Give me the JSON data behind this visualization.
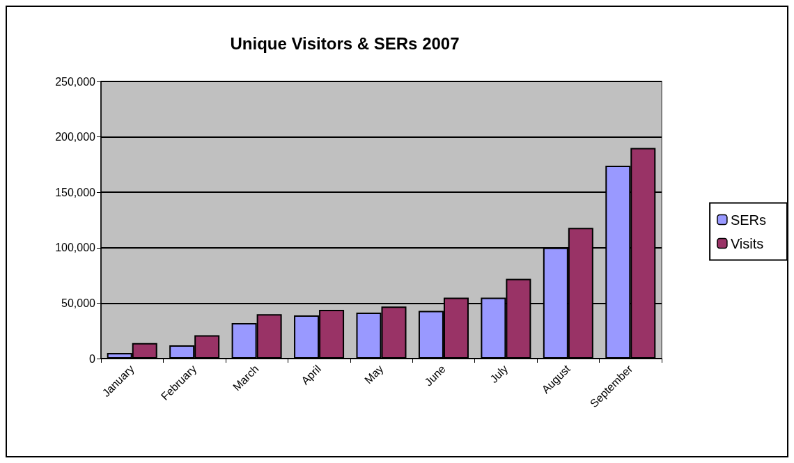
{
  "chart_data": {
    "type": "bar",
    "title": "Unique Visitors & SERs 2007",
    "categories": [
      "January",
      "February",
      "March",
      "April",
      "May",
      "June",
      "July",
      "August",
      "September"
    ],
    "series": [
      {
        "name": "SERs",
        "color": "#9999ff",
        "values": [
          5000,
          12000,
          32000,
          39000,
          41500,
          43000,
          55000,
          100000,
          174000
        ]
      },
      {
        "name": "Visits",
        "color": "#993366",
        "values": [
          14000,
          21000,
          40000,
          44000,
          47000,
          55000,
          72000,
          118000,
          190000
        ]
      }
    ],
    "ylim": [
      0,
      250000
    ],
    "yticks": [
      0,
      {
        "value": 50000,
        "label": "50,000"
      },
      {
        "value": 100000,
        "label": "100,000"
      },
      {
        "value": 150000,
        "label": "150,000"
      },
      {
        "value": 200000,
        "label": "200,000"
      },
      {
        "value": 250000,
        "label": "250,000"
      }
    ],
    "grid": "y",
    "legend": "right"
  }
}
